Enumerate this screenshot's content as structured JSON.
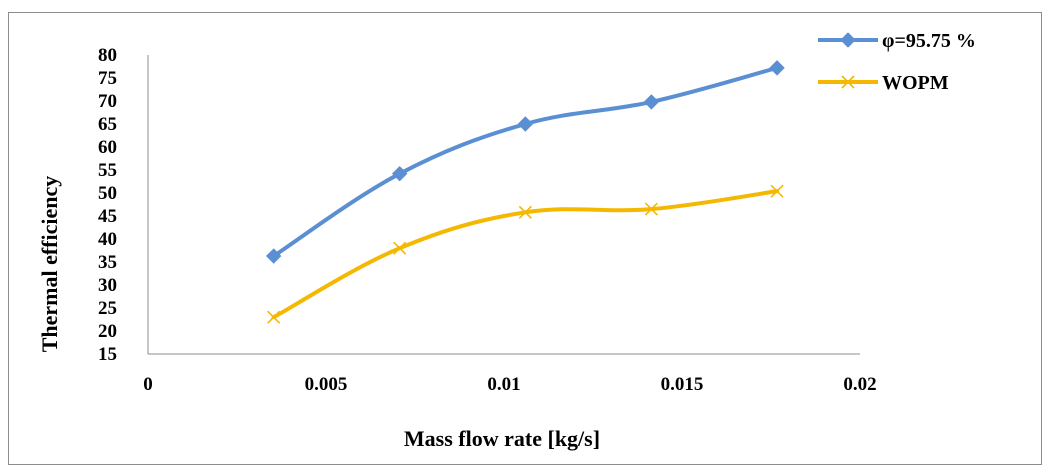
{
  "chart_data": {
    "type": "line",
    "title": "",
    "xlabel": "Mass flow rate [kg/s]",
    "ylabel": "Thermal efficiency",
    "xlim": [
      0,
      0.02
    ],
    "ylim": [
      15,
      80
    ],
    "x_ticks": [
      0,
      0.005,
      0.01,
      0.015,
      0.02
    ],
    "x_tick_labels": [
      "0",
      "0.005",
      "0.01",
      "0.015",
      "0.02"
    ],
    "y_ticks": [
      15,
      20,
      25,
      30,
      35,
      40,
      45,
      50,
      55,
      60,
      65,
      70,
      75,
      80
    ],
    "grid": false,
    "legend_position": "top-right",
    "series": [
      {
        "name": "φ=95.75 %",
        "color": "#5b8fd3",
        "marker": "diamond",
        "x": [
          0.00353,
          0.00707,
          0.0106,
          0.01414,
          0.01767
        ],
        "y": [
          36.3,
          54.2,
          65,
          69.8,
          77.2
        ]
      },
      {
        "name": "WOPM",
        "color": "#f5b800",
        "marker": "x",
        "x": [
          0.00353,
          0.00707,
          0.0106,
          0.01414,
          0.01767
        ],
        "y": [
          23,
          38,
          45.8,
          46.5,
          50.4
        ]
      }
    ]
  }
}
